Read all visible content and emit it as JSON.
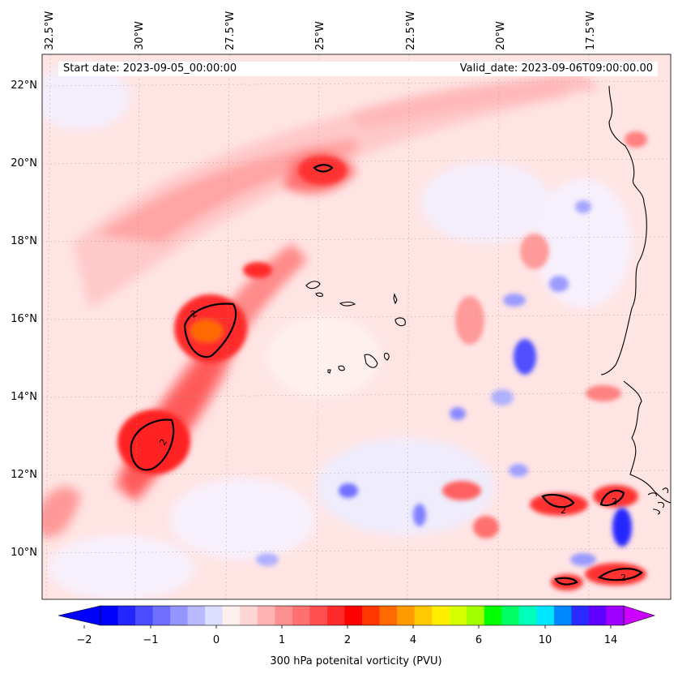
{
  "header": {
    "start_date": "Start date: 2023-09-05_00:00:00",
    "valid_date": "Valid_date: 2023-09-06T09:00:00.00"
  },
  "map": {
    "lon_labels": [
      "32.5°W",
      "30°W",
      "27.5°W",
      "25°W",
      "22.5°W",
      "20°W",
      "17.5°W"
    ],
    "lat_labels": [
      "22°N",
      "20°N",
      "18°N",
      "16°N",
      "14°N",
      "12°N",
      "10°N"
    ],
    "contour_level_label": "2",
    "contour_value": 2,
    "lon_range": [
      -33.5,
      -15.8
    ],
    "lat_range": [
      8.9,
      22.8
    ]
  },
  "colorbar": {
    "tick_labels": [
      "−2",
      "−1",
      "0",
      "1",
      "2",
      "4",
      "6",
      "10",
      "14"
    ],
    "label": "300 hPa potenital vorticity (PVU)",
    "colors": [
      "#0000ff",
      "#2525ff",
      "#4b4bff",
      "#7070ff",
      "#9595ff",
      "#b9b9ff",
      "#dedeff",
      "#ffeeee",
      "#ffd6d6",
      "#ffb3b3",
      "#ff9090",
      "#ff7070",
      "#ff4e4e",
      "#ff2a2a",
      "#ff0000",
      "#ff3600",
      "#ff6a00",
      "#ff9a00",
      "#ffc800",
      "#ffee00",
      "#d6ff00",
      "#a2ff00",
      "#00ff00",
      "#00ff66",
      "#00ffbb",
      "#00e6ff",
      "#0088ff",
      "#2a2aff",
      "#6000ff",
      "#a000ff"
    ],
    "extend_min_color": "#0000ff",
    "extend_max_color": "#cc00ff"
  }
}
